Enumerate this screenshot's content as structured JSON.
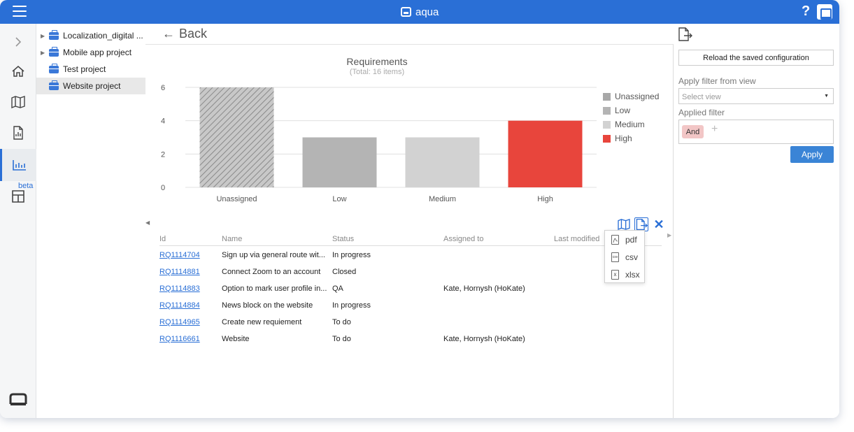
{
  "app": {
    "title": "aqua"
  },
  "topbar": {
    "help_label": "?"
  },
  "nav": {
    "beta_label": "beta"
  },
  "tree": {
    "items": [
      {
        "label": "Localization_digital ...",
        "expandable": true
      },
      {
        "label": "Mobile app project",
        "expandable": true
      },
      {
        "label": "Test project",
        "expandable": false
      },
      {
        "label": "Website project",
        "expandable": false,
        "selected": true
      }
    ]
  },
  "header": {
    "back_label": "Back",
    "back_arrow": "←"
  },
  "chart_data": {
    "type": "bar",
    "title": "Requirements",
    "subtitle": "(Total: 16 items)",
    "categories": [
      "Unassigned",
      "Low",
      "Medium",
      "High"
    ],
    "values": [
      6,
      3,
      3,
      4
    ],
    "colors": [
      "#a8a8a8",
      "#b4b4b4",
      "#d2d2d2",
      "#e8453c"
    ],
    "hatched": [
      true,
      false,
      false,
      false
    ],
    "ylim": [
      0,
      6
    ],
    "yticks": [
      0,
      2,
      4,
      6
    ],
    "grid": true,
    "legend_position": "right",
    "legend": [
      "Unassigned",
      "Low",
      "Medium",
      "High"
    ]
  },
  "table": {
    "columns": [
      "Id",
      "Name",
      "Status",
      "Assigned to",
      "Last modified"
    ],
    "rows": [
      {
        "id": "RQ1114704",
        "name": "Sign up via general route wit...",
        "status": "In progress",
        "assigned": ""
      },
      {
        "id": "RQ1114881",
        "name": "Connect Zoom to an account",
        "status": "Closed",
        "assigned": ""
      },
      {
        "id": "RQ1114883",
        "name": "Option to mark user profile in...",
        "status": "QA",
        "assigned": "Kate, Hornysh (HoKate)"
      },
      {
        "id": "RQ1114884",
        "name": "News block on the website",
        "status": "In progress",
        "assigned": ""
      },
      {
        "id": "RQ1114965",
        "name": "Create new requiement",
        "status": "To do",
        "assigned": ""
      },
      {
        "id": "RQ1116661",
        "name": "Website",
        "status": "To do",
        "assigned": "Kate, Hornysh (HoKate)"
      }
    ]
  },
  "export_menu": {
    "items": [
      {
        "label": "pdf",
        "icon_text": ""
      },
      {
        "label": "csv",
        "icon_text": "csv"
      },
      {
        "label": "xlsx",
        "icon_text": "x"
      }
    ]
  },
  "panel": {
    "reload_label": "Reload the saved configuration",
    "filter_view_label": "Apply filter from view",
    "select_placeholder": "Select view",
    "applied_filter_label": "Applied filter",
    "and_label": "And",
    "plus_label": "+",
    "apply_label": "Apply"
  },
  "colors": {
    "accent": "#2a6fd6",
    "high": "#e8453c"
  }
}
